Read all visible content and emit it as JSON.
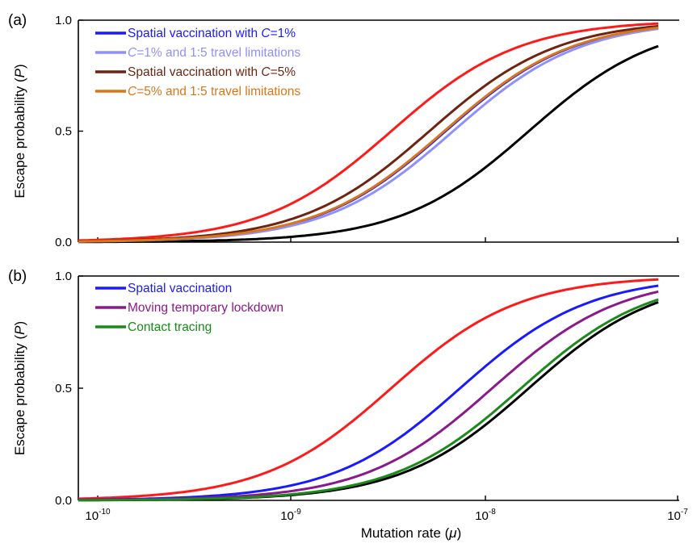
{
  "colors": {
    "red": "#ff1a1a",
    "black": "#000000",
    "blue": "#1a1aff",
    "lightblue": "#8f8fff",
    "brown": "#6e2410",
    "orange": "#d9761a",
    "purple": "#8a1a8a",
    "green": "#1a8a1a"
  },
  "chart_data": [
    {
      "type": "line",
      "panel_label": "(a)",
      "xlabel": "",
      "ylabel": "Escape probability (P)",
      "xscale": "log",
      "xlim": [
        7e-11,
        1.3e-07
      ],
      "ylim": [
        0,
        1
      ],
      "y_ticks": [
        "0.0",
        "0.5",
        "1.0"
      ],
      "x_ticks": [
        {
          "base": "10",
          "exp": "-10"
        },
        {
          "base": "10",
          "exp": "-9"
        },
        {
          "base": "10",
          "exp": "-8"
        },
        {
          "base": "10",
          "exp": "-7"
        }
      ],
      "legend_position": "top-left",
      "series": [
        {
          "legend": "",
          "color": "#ff1a1a",
          "midpoint": 3.3e-09,
          "k": 1.05
        },
        {
          "legend": "",
          "color": "#000000",
          "midpoint": 1.7e-08,
          "k": 1.05
        },
        {
          "legend": "Spatial vaccination with C=1%",
          "legend_parts": [
            "Spatial vaccination with ",
            "C",
            "=1%"
          ],
          "color": "#1a1aff",
          "midpoint": 6.3e-09,
          "k": 1.05
        },
        {
          "legend": "C=1% and 1:5 travel limitations",
          "legend_parts": [
            "",
            "C",
            "=1% and 1:5 travel limitations"
          ],
          "color": "#8f8fff",
          "midpoint": 6.9e-09,
          "k": 1.05
        },
        {
          "legend": "Spatial vaccination with C=5%",
          "legend_parts": [
            "Spatial vaccination with ",
            "C",
            "=5%"
          ],
          "color": "#6e2410",
          "midpoint": 5.2e-09,
          "k": 1.05
        },
        {
          "legend": "C=5% and 1:5 travel limitations",
          "legend_parts": [
            "",
            "C",
            "=5% and 1:5 travel limitations"
          ],
          "color": "#d9761a",
          "midpoint": 6.2e-09,
          "k": 1.05
        }
      ]
    },
    {
      "type": "line",
      "panel_label": "(b)",
      "xlabel": "Mutation rate (μ)",
      "ylabel": "Escape probability (P)",
      "xscale": "log",
      "xlim": [
        7e-11,
        1.3e-07
      ],
      "ylim": [
        0,
        1
      ],
      "y_ticks": [
        "0.0",
        "0.5",
        "1.0"
      ],
      "x_ticks": [
        {
          "base": "10",
          "exp": "-10"
        },
        {
          "base": "10",
          "exp": "-9"
        },
        {
          "base": "10",
          "exp": "-8"
        },
        {
          "base": "10",
          "exp": "-7"
        }
      ],
      "legend_position": "top-left",
      "series": [
        {
          "legend": "",
          "color": "#ff1a1a",
          "midpoint": 3.3e-09,
          "k": 1.05
        },
        {
          "legend": "",
          "color": "#000000",
          "midpoint": 1.7e-08,
          "k": 1.05
        },
        {
          "legend": "Spatial vaccination",
          "legend_parts": [
            "Spatial vaccination"
          ],
          "color": "#1a1aff",
          "midpoint": 7.5e-09,
          "k": 1.05
        },
        {
          "legend": "Moving temporary lockdown",
          "legend_parts": [
            "Moving temporary lockdown"
          ],
          "color": "#8a1a8a",
          "midpoint": 1.1e-08,
          "k": 1.05
        },
        {
          "legend": "Contact tracing",
          "legend_parts": [
            "Contact tracing"
          ],
          "color": "#1a8a1a",
          "midpoint": 1.55e-08,
          "k": 1.05
        }
      ]
    }
  ]
}
